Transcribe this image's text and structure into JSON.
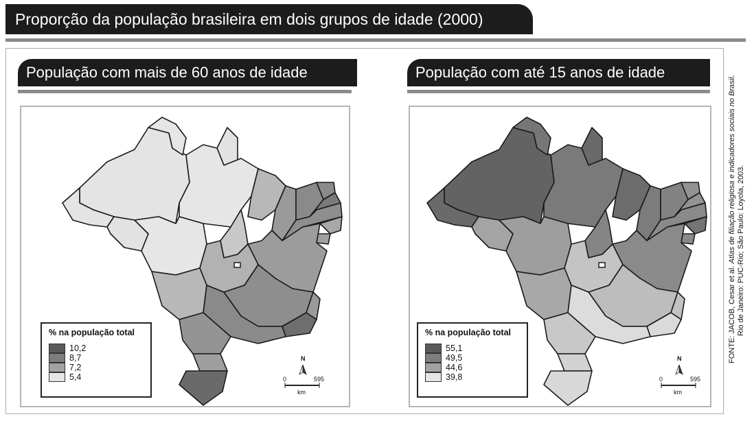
{
  "header": {
    "title": "Proporção da população brasileira em dois grupos de idade (2000)"
  },
  "maps": [
    {
      "title": "População com mais de 60 anos de idade",
      "legend_title": "% na população total",
      "legend_items": [
        {
          "label": "10,2",
          "color": "#5a5a5a"
        },
        {
          "label": "8,7",
          "color": "#7d7d7d"
        },
        {
          "label": "7,2",
          "color": "#a2a2a2"
        },
        {
          "label": "5,4",
          "color": "#e6e6e6"
        }
      ],
      "region_shades": {
        "amazonas": "#e4e4e4",
        "roraima": "#e6e6e6",
        "amapa": "#e2e2e2",
        "para": "#e6e6e6",
        "acre": "#e4e4e4",
        "rondonia": "#e2e2e2",
        "mato_grosso": "#e6e6e6",
        "tocantins": "#c8c8c8",
        "maranhao": "#b8b8b8",
        "piaui": "#9a9a9a",
        "ceara": "#8a8a8a",
        "rn": "#8a8a8a",
        "paraiba": "#7a7a7a",
        "pernambuco": "#8e8e8e",
        "alagoas": "#a8a8a8",
        "sergipe": "#a0a0a0",
        "bahia": "#9c9c9c",
        "goias": "#b2b2b2",
        "ms": "#b8b8b8",
        "minas": "#8e8e8e",
        "es": "#9a9a9a",
        "rj": "#6e6e6e",
        "sp": "#8a8a8a",
        "parana": "#949494",
        "sc": "#9e9e9e",
        "rs": "#6a6a6a"
      },
      "north_label": "N",
      "scale": {
        "min": "0",
        "max": "595",
        "unit": "km"
      }
    },
    {
      "title": "População com até 15 anos de idade",
      "legend_title": "% na população total",
      "legend_items": [
        {
          "label": "55,1",
          "color": "#5a5a5a"
        },
        {
          "label": "49,5",
          "color": "#7d7d7d"
        },
        {
          "label": "44,6",
          "color": "#a2a2a2"
        },
        {
          "label": "39,8",
          "color": "#e6e6e6"
        }
      ],
      "region_shades": {
        "amazonas": "#636363",
        "roraima": "#767676",
        "amapa": "#6a6a6a",
        "para": "#7a7a7a",
        "acre": "#6a6a6a",
        "rondonia": "#a4a4a4",
        "mato_grosso": "#9e9e9e",
        "tocantins": "#858585",
        "maranhao": "#6c6c6c",
        "piaui": "#7c7c7c",
        "ceara": "#828282",
        "rn": "#929292",
        "paraiba": "#929292",
        "pernambuco": "#8a8a8a",
        "alagoas": "#747474",
        "sergipe": "#8a8a8a",
        "bahia": "#8a8a8a",
        "goias": "#c4c4c4",
        "ms": "#a8a8a8",
        "minas": "#bdbdbd",
        "es": "#c2c2c2",
        "rj": "#dadada",
        "sp": "#dcdcdc",
        "parana": "#c8c8c8",
        "sc": "#d2d2d2",
        "rs": "#d8d8d8"
      },
      "north_label": "N",
      "scale": {
        "min": "0",
        "max": "595",
        "unit": "km"
      }
    }
  ],
  "source": {
    "prefix": "FONTE: JACOB, Cesar et al. ",
    "title": "Atlas de filiação religiosa e indicadores sociais no Brasil.",
    "line2": "Rio de Janeiro: PUC-Rio; São Paulo: Loyola, 2003."
  }
}
